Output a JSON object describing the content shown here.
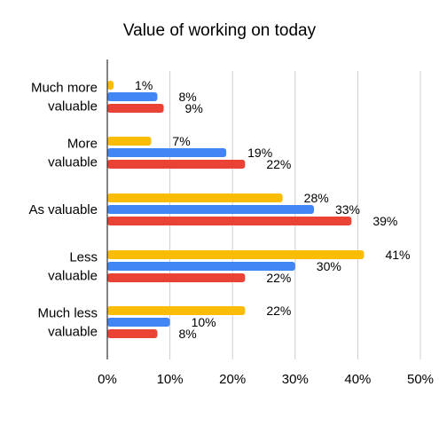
{
  "chart_data": {
    "type": "bar",
    "orientation": "horizontal",
    "title": "Value of working on today",
    "xlabel": "",
    "ylabel": "",
    "categories": [
      [
        "Much more",
        "valuable"
      ],
      [
        "More",
        "valuable"
      ],
      [
        "As valuable"
      ],
      [
        "Less",
        "valuable"
      ],
      [
        "Much less",
        "valuable"
      ]
    ],
    "series": [
      {
        "color": "#fbbc04",
        "values": [
          1,
          7,
          28,
          41,
          22
        ],
        "labels": [
          "1%",
          "7%",
          "28%",
          "41%",
          "22%"
        ]
      },
      {
        "color": "#4285f4",
        "values": [
          8,
          19,
          33,
          30,
          10
        ],
        "labels": [
          "8%",
          "19%",
          "33%",
          "30%",
          "10%"
        ]
      },
      {
        "color": "#ea4335",
        "values": [
          9,
          22,
          39,
          22,
          8
        ],
        "labels": [
          "9%",
          "22%",
          "39%",
          "22%",
          "8%"
        ]
      }
    ],
    "xlim": [
      0,
      50
    ],
    "xticks": [
      0,
      10,
      20,
      30,
      40,
      50
    ],
    "xtick_labels": [
      "0%",
      "10%",
      "20%",
      "30%",
      "40%",
      "50%"
    ],
    "grid": true,
    "legend": "none"
  }
}
